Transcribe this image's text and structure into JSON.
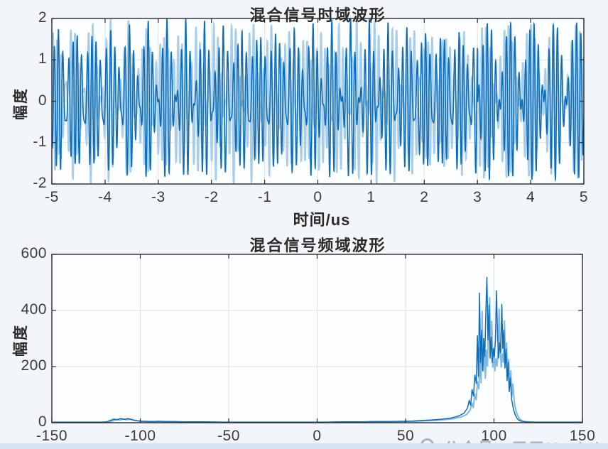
{
  "figure": {
    "background_color": "#f2f5f9",
    "bottom_strip_color": "#d9e4f2",
    "watermark": {
      "icon": "circle-logo",
      "text": "公众号：天天Matlab"
    }
  },
  "chart_data": [
    {
      "type": "line",
      "title": "混合信号时域波形",
      "xlabel": "时间/us",
      "ylabel": "幅度",
      "xlim": [
        -5,
        5
      ],
      "ylim": [
        -2,
        2
      ],
      "xticks": [
        -5,
        -4,
        -3,
        -2,
        -1,
        0,
        1,
        2,
        3,
        4,
        5
      ],
      "yticks": [
        -2,
        -1,
        0,
        1,
        2
      ],
      "grid": true,
      "legend": "none",
      "line_color": "#0d6db8",
      "line_color_light": "#a6cde9",
      "signal_model": {
        "note": "dense multi-tone beat waveform estimated from pixels; components are [amplitude, cycles_per_us_visual, phase_rad]",
        "envelope_max": 2,
        "segments": [
          {
            "t_range": [
              -5,
              3
            ],
            "components": [
              [
                1.0,
                11.3,
                0.3
              ],
              [
                0.75,
                14.2,
                1.7
              ],
              [
                0.25,
                8.7,
                4.0
              ]
            ]
          },
          {
            "t_range": [
              3,
              5
            ],
            "components": [
              [
                0.95,
                11.3,
                0.3
              ],
              [
                0.95,
                13.7,
                2.2
              ]
            ]
          }
        ],
        "backdrop_segments": [
          {
            "t_range": [
              -5,
              3
            ],
            "components": [
              [
                1.0,
                11.9,
                2.1
              ],
              [
                0.72,
                14.9,
                0.5
              ],
              [
                0.28,
                9.3,
                1.2
              ]
            ]
          },
          {
            "t_range": [
              3,
              5
            ],
            "components": [
              [
                0.93,
                11.9,
                2.1
              ],
              [
                0.93,
                14.2,
                0.9
              ]
            ]
          }
        ]
      }
    },
    {
      "type": "line",
      "title": "混合信号频域波形",
      "xlabel": "",
      "ylabel": "幅度",
      "xlim": [
        -150,
        150
      ],
      "ylim": [
        0,
        600
      ],
      "xticks": [
        -150,
        -100,
        -50,
        0,
        50,
        100,
        150
      ],
      "yticks": [
        0,
        200,
        400,
        600
      ],
      "grid": true,
      "legend": "none",
      "line_color": "#0d6db8",
      "line_color_light": "#7fb8e0",
      "points": [
        [
          -150,
          2
        ],
        [
          -140,
          2
        ],
        [
          -130,
          2
        ],
        [
          -122,
          2
        ],
        [
          -119,
          3
        ],
        [
          -117,
          8
        ],
        [
          -115,
          13
        ],
        [
          -113,
          11
        ],
        [
          -111,
          15
        ],
        [
          -109,
          12
        ],
        [
          -107,
          15
        ],
        [
          -105,
          11
        ],
        [
          -103,
          8
        ],
        [
          -101,
          6
        ],
        [
          -98,
          5
        ],
        [
          -94,
          4
        ],
        [
          -90,
          5
        ],
        [
          -86,
          4
        ],
        [
          -82,
          4
        ],
        [
          -76,
          3
        ],
        [
          -70,
          3
        ],
        [
          -62,
          3
        ],
        [
          -55,
          2
        ],
        [
          -48,
          2
        ],
        [
          -40,
          2
        ],
        [
          -32,
          2
        ],
        [
          -25,
          2
        ],
        [
          -18,
          2
        ],
        [
          -10,
          2
        ],
        [
          -4,
          2
        ],
        [
          0,
          2
        ],
        [
          6,
          2
        ],
        [
          12,
          3
        ],
        [
          18,
          3
        ],
        [
          25,
          3
        ],
        [
          32,
          4
        ],
        [
          40,
          4
        ],
        [
          48,
          5
        ],
        [
          54,
          6
        ],
        [
          60,
          8
        ],
        [
          66,
          10
        ],
        [
          71,
          13
        ],
        [
          76,
          17
        ],
        [
          80,
          24
        ],
        [
          83,
          34
        ],
        [
          85,
          52
        ],
        [
          86,
          80
        ],
        [
          86.8,
          62
        ],
        [
          87.6,
          118
        ],
        [
          88.4,
          95
        ],
        [
          89.2,
          170
        ],
        [
          90,
          140
        ],
        [
          90.6,
          310
        ],
        [
          91.2,
          165
        ],
        [
          91.8,
          462
        ],
        [
          92.4,
          215
        ],
        [
          93,
          330
        ],
        [
          93.6,
          185
        ],
        [
          94.2,
          300
        ],
        [
          94.8,
          235
        ],
        [
          95.4,
          395
        ],
        [
          96,
          518
        ],
        [
          96.6,
          295
        ],
        [
          97.2,
          420
        ],
        [
          97.8,
          230
        ],
        [
          98.4,
          305
        ],
        [
          99,
          215
        ],
        [
          99.6,
          265
        ],
        [
          100.2,
          235
        ],
        [
          100.8,
          295
        ],
        [
          101.4,
          470
        ],
        [
          102,
          310
        ],
        [
          102.6,
          230
        ],
        [
          103.2,
          285
        ],
        [
          103.8,
          250
        ],
        [
          104.4,
          422
        ],
        [
          105,
          265
        ],
        [
          105.6,
          330
        ],
        [
          106.2,
          195
        ],
        [
          106.8,
          262
        ],
        [
          107.4,
          150
        ],
        [
          108,
          215
        ],
        [
          108.6,
          110
        ],
        [
          109.2,
          160
        ],
        [
          110,
          82
        ],
        [
          111,
          48
        ],
        [
          112,
          28
        ],
        [
          113,
          16
        ],
        [
          114,
          9
        ],
        [
          115.5,
          5
        ],
        [
          118,
          3
        ],
        [
          122,
          2
        ],
        [
          130,
          2
        ],
        [
          140,
          2
        ],
        [
          150,
          2
        ]
      ]
    }
  ]
}
